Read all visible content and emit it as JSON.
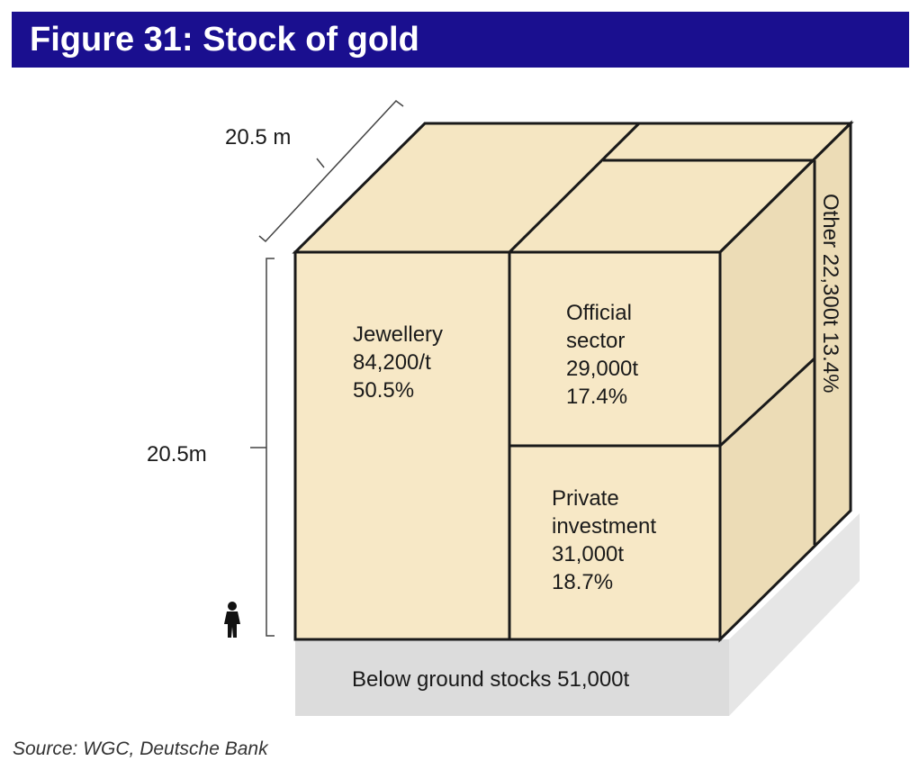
{
  "header": {
    "title": "Figure 31: Stock of gold"
  },
  "dimensions": {
    "depth_label": "20.5 m",
    "height_label": "20.5m"
  },
  "segments": {
    "jewellery": {
      "lines": [
        "Jewellery",
        "84,200/t",
        "50.5%"
      ]
    },
    "official": {
      "lines": [
        "Official",
        "sector",
        "29,000t",
        "17.4%"
      ]
    },
    "private": {
      "lines": [
        "Private",
        "investment",
        "31,000t",
        "18.7%"
      ]
    },
    "other": {
      "label": "Other 22,300t 13.4%"
    }
  },
  "base": {
    "label": "Below ground stocks 51,000t"
  },
  "source": "Source: WGC, Deutsche Bank",
  "colors": {
    "header_bg": "#1a0f8f",
    "cube_front": "#f7e8c6",
    "cube_top": "#f5e6c2",
    "cube_side": "#ecdcb6",
    "base": "#dcdcdc"
  },
  "icons": {
    "person": "person-silhouette-icon"
  }
}
